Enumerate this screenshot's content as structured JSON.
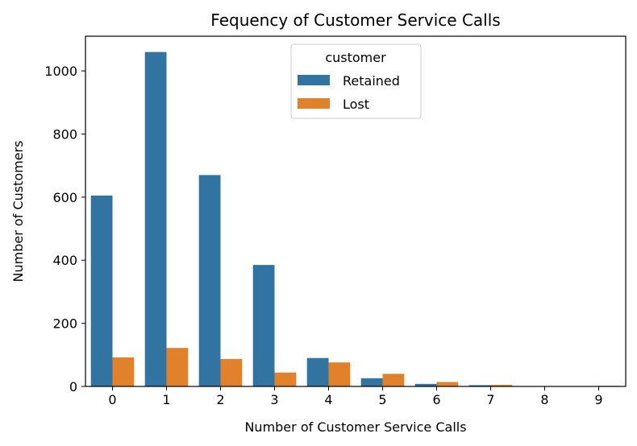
{
  "chart_data": {
    "type": "bar",
    "title": "Fequency of Customer Service Calls",
    "xlabel": "Number of Customer Service Calls",
    "ylabel": "Number of Customers",
    "categories": [
      "0",
      "1",
      "2",
      "3",
      "4",
      "5",
      "6",
      "7",
      "8",
      "9"
    ],
    "series": [
      {
        "name": "Retained",
        "color": "#3274a1",
        "values": [
          605,
          1060,
          670,
          385,
          90,
          26,
          8,
          4,
          1,
          0
        ]
      },
      {
        "name": "Lost",
        "color": "#e1812c",
        "values": [
          92,
          122,
          87,
          44,
          76,
          40,
          14,
          5,
          1,
          2
        ]
      }
    ],
    "ylim": [
      0,
      1110
    ],
    "yticks": [
      0,
      200,
      400,
      600,
      800,
      1000
    ],
    "legend": {
      "title": "customer",
      "position": "top-center"
    },
    "grid": false
  }
}
